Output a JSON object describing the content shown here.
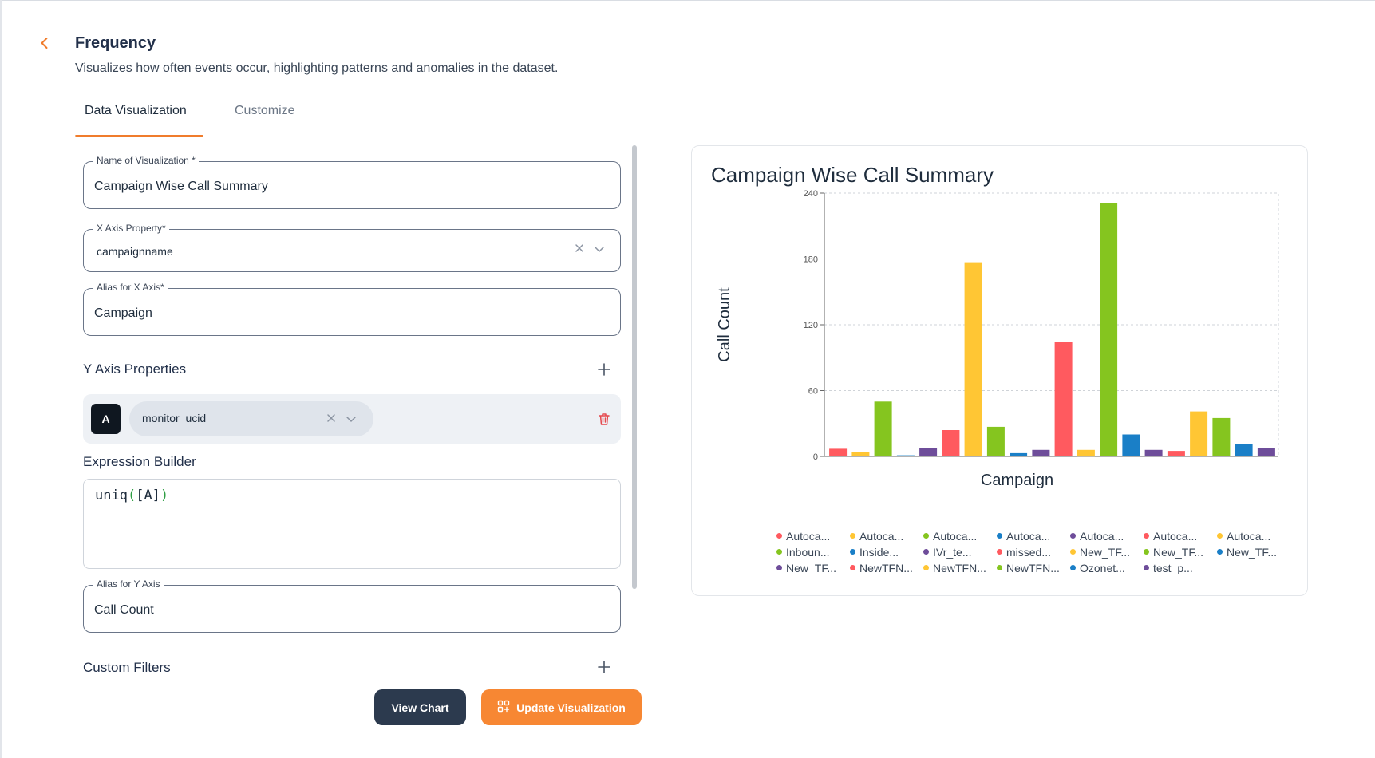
{
  "header": {
    "title": "Frequency",
    "subtitle": "Visualizes how often events occur, highlighting patterns and anomalies in the dataset."
  },
  "tabs": [
    {
      "label": "Data Visualization",
      "active": true
    },
    {
      "label": "Customize",
      "active": false
    }
  ],
  "form": {
    "name": {
      "label": "Name of Visualization *",
      "value": "Campaign Wise Call Summary"
    },
    "x_axis": {
      "label": "X Axis Property*",
      "value": "campaignname"
    },
    "x_alias": {
      "label": "Alias for X Axis*",
      "value": "Campaign"
    },
    "y_section_label": "Y Axis Properties",
    "y_property": {
      "badge": "A",
      "value": "monitor_ucid"
    },
    "expression_label": "Expression Builder",
    "expression": {
      "func": "uniq",
      "open": "(",
      "arg": "[A]",
      "close": ")"
    },
    "y_alias": {
      "label": "Alias for Y Axis",
      "value": "Call Count"
    },
    "filters_label": "Custom Filters"
  },
  "buttons": {
    "view": "View Chart",
    "update": "Update Visualization"
  },
  "colors": {
    "accent": "#f78733",
    "red": "#ff5a5f",
    "yellow": "#ffc634",
    "green": "#85c51f",
    "blue": "#1a7fc7",
    "purple": "#6e4d9a"
  },
  "chart_data": {
    "type": "bar",
    "title": "Campaign Wise Call Summary",
    "xlabel": "Campaign",
    "ylabel": "Call Count",
    "ylim": [
      0,
      240
    ],
    "yticks": [
      0,
      60,
      120,
      180,
      240
    ],
    "grid": true,
    "legend_position": "bottom",
    "categories": [
      "Autoca...",
      "Autoca...",
      "Autoca...",
      "Autoca...",
      "Autoca...",
      "Autoca...",
      "Autoca...",
      "Inboun...",
      "Inside...",
      "IVr_te...",
      "missed...",
      "New_TF...",
      "New_TF...",
      "New_TF...",
      "New_TF...",
      "NewTFN...",
      "NewTFN...",
      "NewTFN...",
      "Ozonet...",
      "test_p..."
    ],
    "values": [
      7,
      4,
      50,
      1,
      8,
      24,
      177,
      27,
      3,
      6,
      104,
      6,
      231,
      20,
      6,
      5,
      41,
      35,
      11,
      8
    ],
    "bar_colors": [
      "#ff5a5f",
      "#ffc634",
      "#85c51f",
      "#1a7fc7",
      "#6e4d9a",
      "#ff5a5f",
      "#ffc634",
      "#85c51f",
      "#1a7fc7",
      "#6e4d9a",
      "#ff5a5f",
      "#ffc634",
      "#85c51f",
      "#1a7fc7",
      "#6e4d9a",
      "#ff5a5f",
      "#ffc634",
      "#85c51f",
      "#1a7fc7",
      "#6e4d9a"
    ],
    "legend_colors": [
      "#ff5a5f",
      "#ffc634",
      "#85c51f",
      "#1a7fc7",
      "#6e4d9a",
      "#ff5a5f",
      "#ffc634",
      "#85c51f",
      "#1a7fc7",
      "#6e4d9a",
      "#ff5a5f",
      "#ffc634",
      "#85c51f",
      "#1a7fc7",
      "#6e4d9a",
      "#ff5a5f",
      "#ffc634",
      "#85c51f",
      "#1a7fc7",
      "#6e4d9a"
    ]
  }
}
